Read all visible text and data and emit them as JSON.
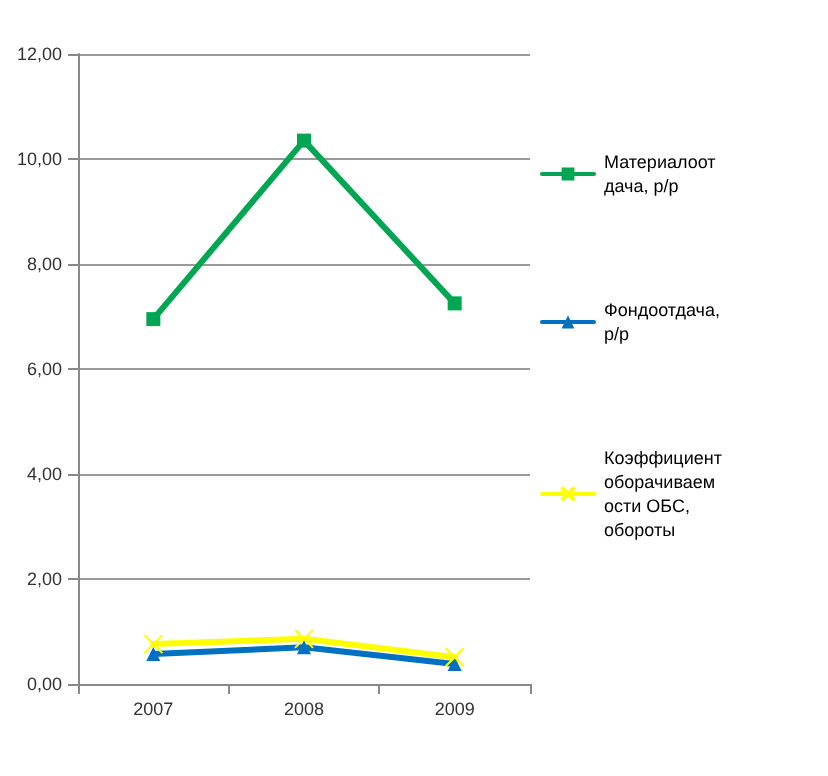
{
  "chart_data": {
    "type": "line",
    "categories": [
      "2007",
      "2008",
      "2009"
    ],
    "series": [
      {
        "name": "Материалоотдача, р/р",
        "color": "#00a651",
        "marker": "square",
        "values": [
          6.95,
          10.35,
          7.25
        ]
      },
      {
        "name": "Фондоотдача, р/р",
        "color": "#0070c0",
        "marker": "triangle",
        "values": [
          0.57,
          0.7,
          0.38
        ]
      },
      {
        "name": "Коэффициент оборачиваемости ОБС, обороты",
        "color": "#ffff00",
        "marker": "cross",
        "values": [
          0.76,
          0.86,
          0.51
        ]
      }
    ],
    "ylim": [
      0,
      12
    ],
    "yticks": [
      {
        "value": 0,
        "label": "0,00"
      },
      {
        "value": 2,
        "label": "2,00"
      },
      {
        "value": 4,
        "label": "4,00"
      },
      {
        "value": 6,
        "label": "6,00"
      },
      {
        "value": 8,
        "label": "8,00"
      },
      {
        "value": 10,
        "label": "10,00"
      },
      {
        "value": 12,
        "label": "12,00"
      }
    ],
    "grid": "y",
    "legend": "right"
  }
}
